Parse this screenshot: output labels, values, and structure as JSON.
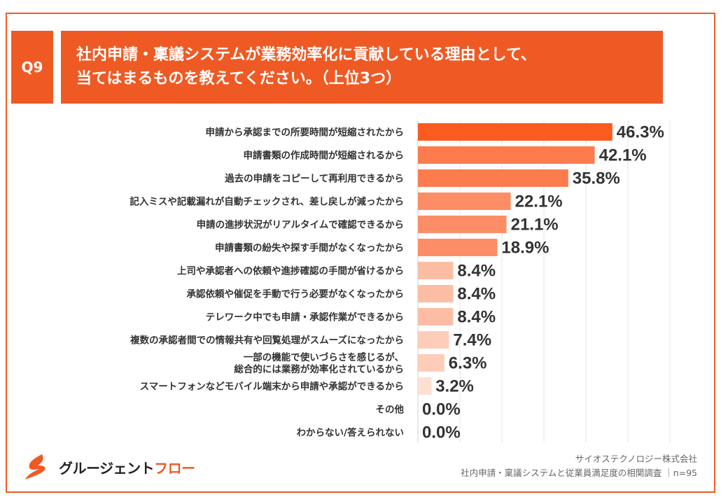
{
  "question": {
    "badge": "Q9"
  },
  "brand": {
    "accent": "#ef5a24",
    "logo_part1": "グルージェント",
    "logo_part2": "フロー",
    "logo_icon": "flame-s-icon"
  },
  "source": {
    "line1": "サイオステクノロジー株式会社",
    "line2": "社内申請・稟議システムと従業員満足度の相関調査 ｜n=95"
  },
  "chart_data": {
    "type": "bar",
    "orientation": "horizontal",
    "title_lines": [
      "社内申請・稟議システムが業務効率化に貢献している理由として、",
      "当てはまるものを教えてください。（上位3つ）"
    ],
    "categories": [
      [
        "申請から承認までの所要時間が短縮されたから"
      ],
      [
        "申請書類の作成時間が短縮されるから"
      ],
      [
        "過去の申請をコピーして再利用できるから"
      ],
      [
        "記入ミスや記載漏れが自動チェックされ、差し戻しが減ったから"
      ],
      [
        "申請の進捗状況がリアルタイムで確認できるから"
      ],
      [
        "申請書類の紛失や探す手間がなくなったから"
      ],
      [
        "上司や承認者への依頼や進捗確認の手間が省けるから"
      ],
      [
        "承認依頼や催促を手動で行う必要がなくなったから"
      ],
      [
        "テレワーク中でも申請・承認作業ができるから"
      ],
      [
        "複数の承認者間での情報共有や回覧処理がスムーズになったから"
      ],
      [
        "一部の機能で使いづらさを感じるが、",
        "総合的には業務が効率化されているから"
      ],
      [
        "スマートフォンなどモバイル端末から申請や承認ができるから"
      ],
      [
        "その他"
      ],
      [
        "わからない/答えられない"
      ]
    ],
    "values": [
      46.3,
      42.1,
      35.8,
      22.1,
      21.1,
      18.9,
      8.4,
      8.4,
      8.4,
      7.4,
      6.3,
      3.2,
      0.0,
      0.0
    ],
    "value_labels": [
      "46.3%",
      "42.1%",
      "35.8%",
      "22.1%",
      "21.1%",
      "18.9%",
      "8.4%",
      "8.4%",
      "8.4%",
      "7.4%",
      "6.3%",
      "3.2%",
      "0.0%",
      "0.0%"
    ],
    "bar_colors": [
      "#fb5b21",
      "#fd7c4d",
      "#fd7c4d",
      "#fd8d66",
      "#fd8d66",
      "#fd8d66",
      "#fdbda4",
      "#fdbda4",
      "#fdbda4",
      "#fecdba",
      "#fecdba",
      "#fee0d3",
      "#fee0d3",
      "#fee0d3"
    ],
    "xlim": [
      0,
      60
    ],
    "grid": "vertical",
    "unit": "%"
  }
}
